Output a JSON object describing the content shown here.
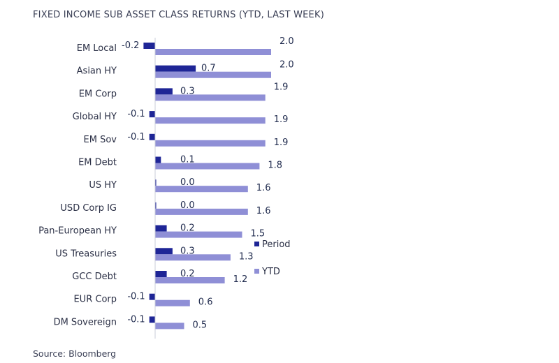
{
  "chart_data": {
    "type": "bar",
    "orientation": "horizontal",
    "title": "FIXED INCOME SUB ASSET CLASS RETURNS (YTD, LAST WEEK)",
    "source": "Source: Bloomberg",
    "categories": [
      "EM Local",
      "Asian HY",
      "EM Corp",
      "Global HY",
      "EM Sov",
      "EM Debt",
      "US HY",
      "USD Corp IG",
      "Pan-European HY",
      "US Treasuries",
      "GCC Debt",
      "EUR Corp",
      "DM Sovereign"
    ],
    "series": [
      {
        "name": "Period",
        "color": "#1e2596",
        "values": [
          -0.2,
          0.7,
          0.3,
          -0.1,
          -0.1,
          0.1,
          0.0,
          0.0,
          0.2,
          0.3,
          0.2,
          -0.1,
          -0.1
        ],
        "labels": [
          "-0.2",
          "0.7",
          "0.3",
          "-0.1",
          "-0.1",
          "0.1",
          "0.0",
          "0.0",
          "0.2",
          "0.3",
          "0.2",
          "-0.1",
          "-0.1"
        ]
      },
      {
        "name": "YTD",
        "color": "#8f8fd6",
        "values": [
          2.0,
          2.0,
          1.9,
          1.9,
          1.9,
          1.8,
          1.6,
          1.6,
          1.5,
          1.3,
          1.2,
          0.6,
          0.5
        ],
        "labels": [
          "2.0",
          "2.0",
          "1.9",
          "1.9",
          "1.9",
          "1.8",
          "1.6",
          "1.6",
          "1.5",
          "1.3",
          "1.2",
          "0.6",
          "0.5"
        ]
      }
    ],
    "legend_position": "right",
    "grid": false
  }
}
